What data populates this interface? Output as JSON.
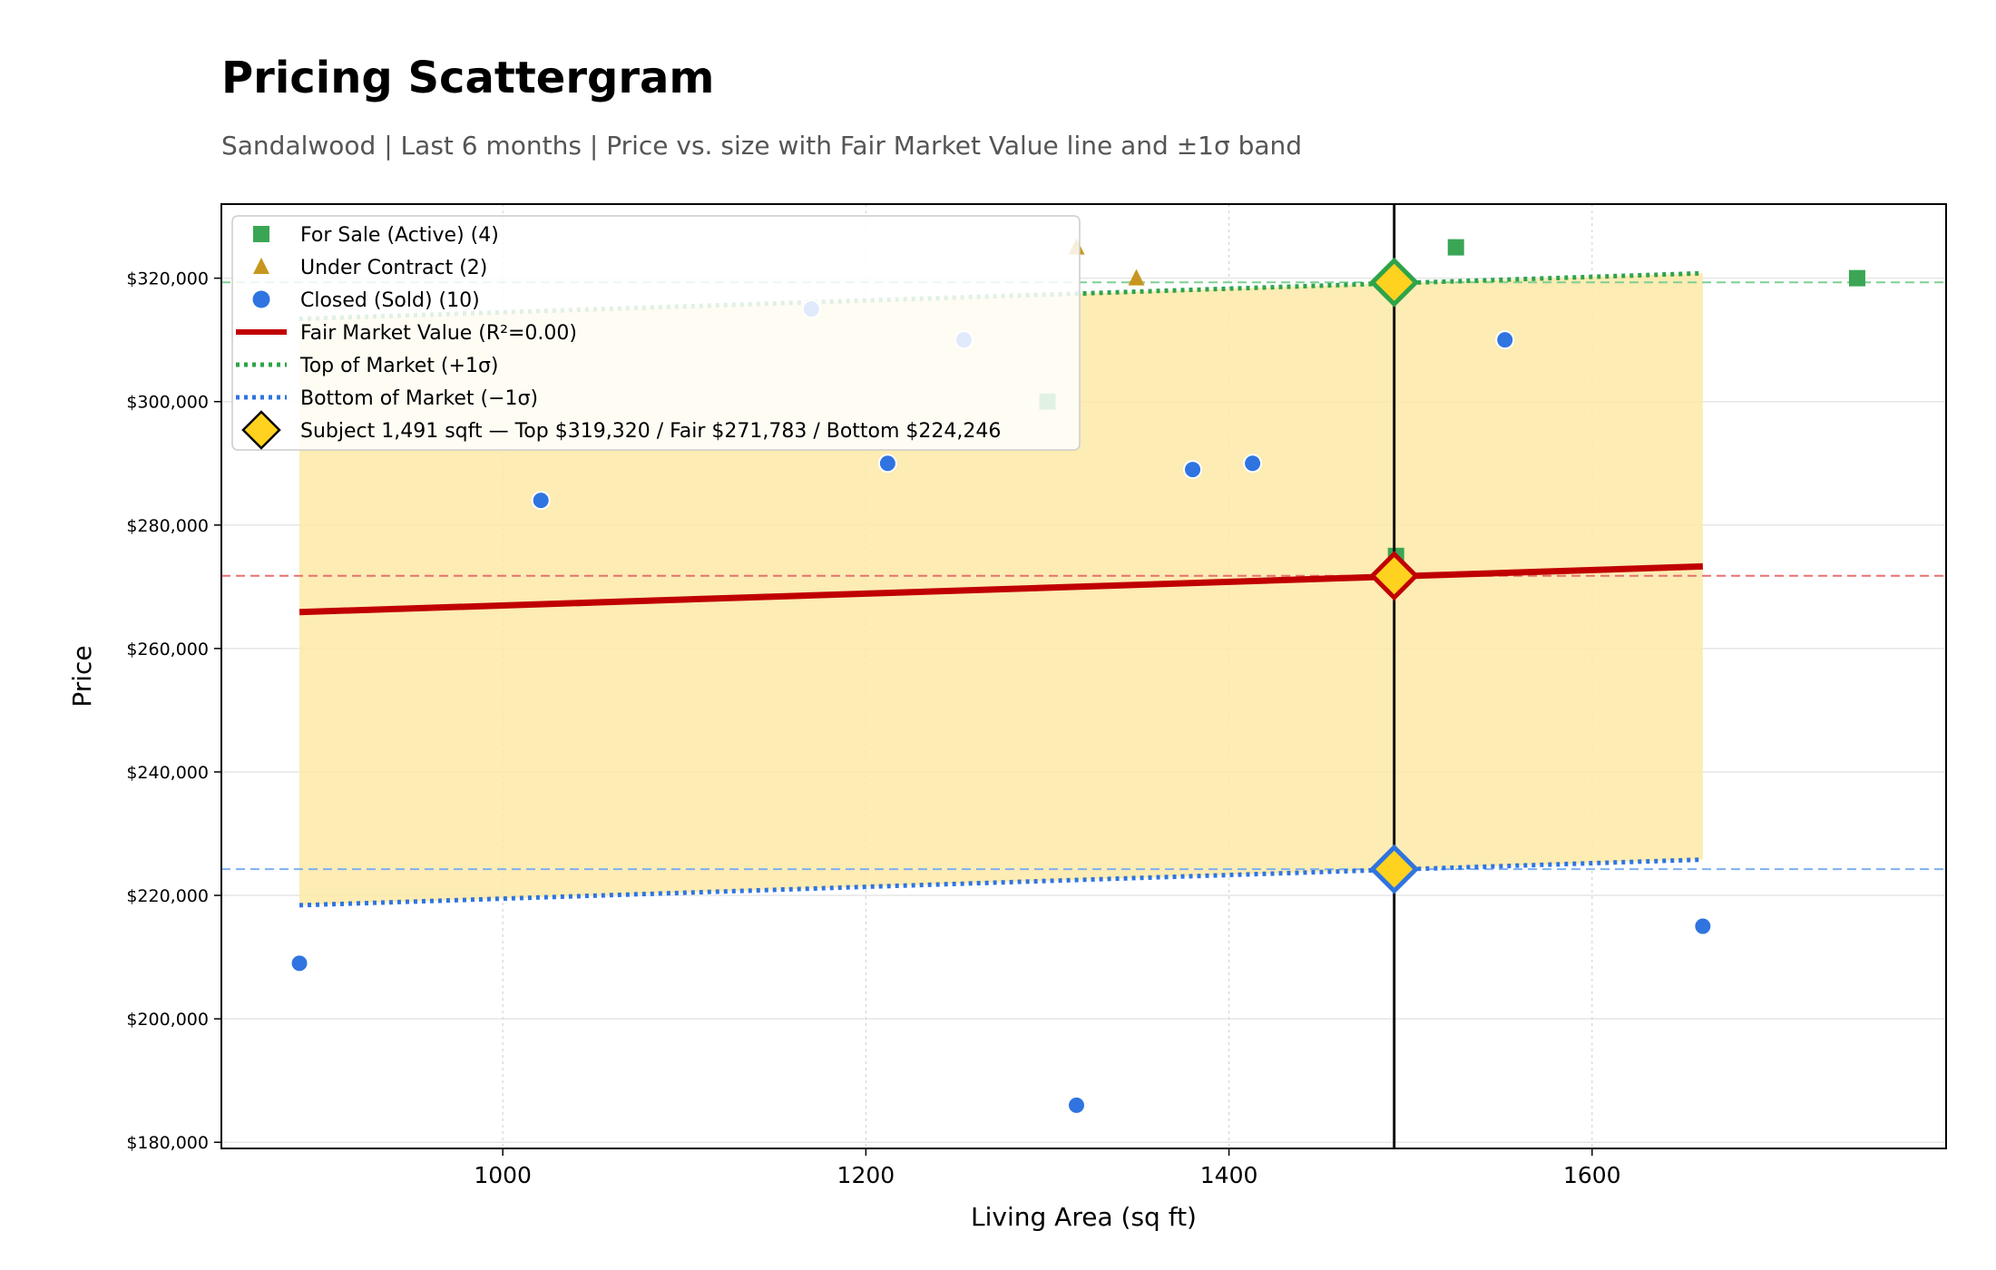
{
  "header": {
    "title": "Pricing Scattergram",
    "subtitle": "Sandalwood  |  Last 6 months  |  Price vs. size with Fair Market Value line and ±1σ band"
  },
  "chart_data": {
    "type": "scatter",
    "title": "Pricing Scattergram",
    "subtitle": "Sandalwood  |  Last 6 months  |  Price vs. size with Fair Market Value line and ±1σ band",
    "xlabel": "Living Area (sq ft)",
    "ylabel": "Price",
    "xlim": [
      845,
      1795
    ],
    "ylim": [
      179000,
      332000
    ],
    "xticks": [
      1000,
      1200,
      1400,
      1600
    ],
    "yticks": [
      180000,
      200000,
      220000,
      240000,
      260000,
      280000,
      300000,
      320000
    ],
    "ytick_labels": [
      "$180,000",
      "$200,000",
      "$220,000",
      "$240,000",
      "$260,000",
      "$280,000",
      "$300,000",
      "$320,000"
    ],
    "grid": true,
    "legend_position": "top-left",
    "series": [
      {
        "name": "For Sale (Active) (4)",
        "marker": "square",
        "color": "#3aa655",
        "points": [
          [
            1300,
            300000
          ],
          [
            1492,
            275000
          ],
          [
            1525,
            325000
          ],
          [
            1746,
            320000
          ]
        ]
      },
      {
        "name": "Under Contract (2)",
        "marker": "triangle",
        "color": "#c8961e",
        "points": [
          [
            1316,
            325000
          ],
          [
            1349,
            320000
          ]
        ]
      },
      {
        "name": "Closed (Sold) (10)",
        "marker": "circle",
        "color": "#2f74e0",
        "points": [
          [
            888,
            209000
          ],
          [
            1021,
            284000
          ],
          [
            1170,
            315000
          ],
          [
            1212,
            290000
          ],
          [
            1254,
            310000
          ],
          [
            1316,
            186000
          ],
          [
            1380,
            289000
          ],
          [
            1413,
            290000
          ],
          [
            1552,
            310000
          ],
          [
            1661,
            215000
          ]
        ]
      }
    ],
    "fair_market_line": {
      "name": "Fair Market Value (R²=0.00)",
      "color": "#c00000",
      "x": [
        888,
        1661
      ],
      "y": [
        265900,
        273300
      ]
    },
    "top_of_market": {
      "name": "Top of Market (+1σ)",
      "color": "#2ea34a",
      "x": [
        888,
        1661
      ],
      "y": [
        313400,
        320800
      ]
    },
    "bottom_of_market": {
      "name": "Bottom of Market (−1σ)",
      "color": "#2f74e0",
      "x": [
        888,
        1661
      ],
      "y": [
        218400,
        225800
      ]
    },
    "sigma_band": {
      "color": "#fde9a6"
    },
    "subject": {
      "name": "Subject 1,491 sqft  —  Top $319,320 / Fair $271,783 / Bottom $224,246",
      "x": 1491,
      "top": 319320,
      "fair": 271783,
      "bottom": 224246,
      "fill": "#ffd21f"
    },
    "reference_lines": {
      "top_color": "#7fcf93",
      "fair_color": "#e87070",
      "bottom_color": "#7fb0ef"
    }
  }
}
